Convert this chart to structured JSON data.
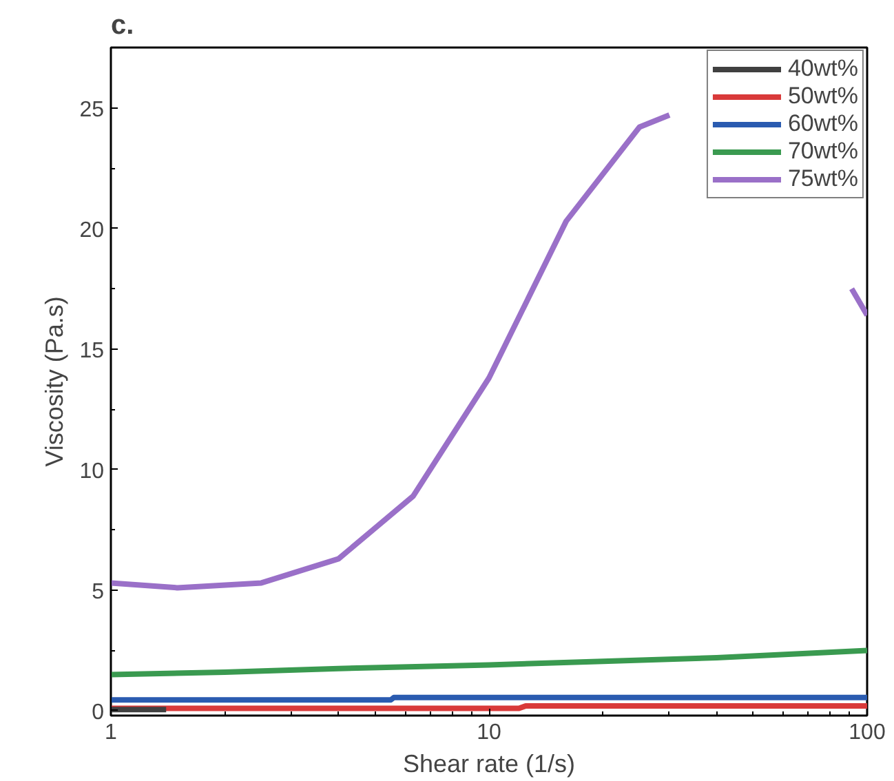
{
  "chart_data": {
    "type": "line",
    "title": "c.",
    "xlabel": "Shear rate (1/s)",
    "ylabel": "Viscosity (Pa.s)",
    "log": "x",
    "grid": false,
    "legend": "top right",
    "line_style": "solid",
    "marker": "none",
    "xlim": [
      1,
      100
    ],
    "xticks": [
      1,
      10,
      100
    ],
    "ylim": [
      -0.2,
      27.5
    ],
    "yticks": [
      0,
      5,
      10,
      15,
      20,
      25
    ],
    "series": [
      {
        "name": "40wt%",
        "color": "#404040",
        "x": [
          1,
          1.4
        ],
        "values": [
          0.05,
          0.05
        ]
      },
      {
        "name": "50wt%",
        "color": "#d93a3a",
        "x": [
          1,
          12,
          12.5,
          100
        ],
        "values": [
          0.1,
          0.1,
          0.2,
          0.2
        ]
      },
      {
        "name": "60wt%",
        "color": "#2a5bb0",
        "x": [
          1,
          5.5,
          5.6,
          100
        ],
        "values": [
          0.45,
          0.45,
          0.55,
          0.55
        ]
      },
      {
        "name": "70wt%",
        "color": "#3a9a50",
        "x": [
          1,
          2,
          4,
          10,
          20,
          40,
          100
        ],
        "values": [
          1.5,
          1.6,
          1.75,
          1.9,
          2.05,
          2.2,
          2.5
        ]
      },
      {
        "name": "75wt%",
        "color": "#9a70c8",
        "x": [
          1,
          1.5,
          2.5,
          4,
          6.3,
          10,
          16,
          25,
          30,
          50,
          91,
          100
        ],
        "values": [
          5.3,
          5.1,
          5.3,
          6.3,
          8.9,
          13.8,
          20.3,
          24.2,
          24.7,
          null,
          17.5,
          16.4
        ]
      }
    ]
  }
}
